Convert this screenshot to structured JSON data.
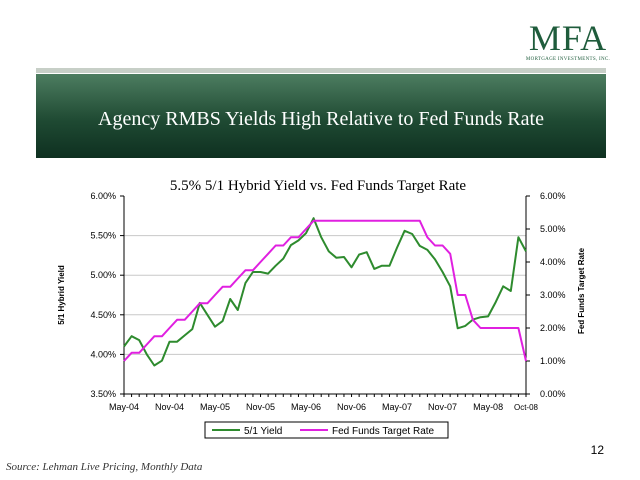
{
  "logo": {
    "mark": "MFA",
    "subtitle": "MORTGAGE INVESTMENTS, INC."
  },
  "slide": {
    "title": "Agency RMBS Yields High Relative to Fed Funds Rate",
    "page_number": "12",
    "source": "Source: Lehman Live Pricing, Monthly Data"
  },
  "colors": {
    "title_band": "#1f4a33",
    "logo": "#1f5c3c",
    "series_1": "#2e8b2e",
    "series_2": "#e020e0"
  },
  "chart_data": {
    "type": "line",
    "title": "5.5% 5/1 Hybrid Yield vs. Fed Funds Target Rate",
    "x": [
      "2004-05",
      "2004-06",
      "2004-07",
      "2004-08",
      "2004-09",
      "2004-10",
      "2004-11",
      "2004-12",
      "2005-01",
      "2005-02",
      "2005-03",
      "2005-04",
      "2005-05",
      "2005-06",
      "2005-07",
      "2005-08",
      "2005-09",
      "2005-10",
      "2005-11",
      "2005-12",
      "2006-01",
      "2006-02",
      "2006-03",
      "2006-04",
      "2006-05",
      "2006-06",
      "2006-07",
      "2006-08",
      "2006-09",
      "2006-10",
      "2006-11",
      "2006-12",
      "2007-01",
      "2007-02",
      "2007-03",
      "2007-04",
      "2007-05",
      "2007-06",
      "2007-07",
      "2007-08",
      "2007-09",
      "2007-10",
      "2007-11",
      "2007-12",
      "2008-01",
      "2008-02",
      "2008-03",
      "2008-04",
      "2008-05",
      "2008-06",
      "2008-07",
      "2008-08",
      "2008-09",
      "2008-10"
    ],
    "xtick_labels": [
      "May-04",
      "Nov-04",
      "May-05",
      "Nov-05",
      "May-06",
      "Nov-06",
      "May-07",
      "Nov-07",
      "May-08",
      "Oct-08"
    ],
    "left_axis": {
      "label": "5/1 Hybrid Yield",
      "ylim": [
        3.5,
        6.0
      ],
      "ticks": [
        "3.50%",
        "4.00%",
        "4.50%",
        "5.00%",
        "5.50%",
        "6.00%"
      ]
    },
    "right_axis": {
      "label": "Fed Funds Target Rate",
      "ylim": [
        0.0,
        6.0
      ],
      "ticks": [
        "0.00%",
        "1.00%",
        "2.00%",
        "3.00%",
        "4.00%",
        "5.00%",
        "6.00%"
      ]
    },
    "series": [
      {
        "name": "5/1 Yield",
        "axis": "left",
        "color": "#2e8b2e",
        "values": [
          4.1,
          4.23,
          4.18,
          4.0,
          3.86,
          3.92,
          4.16,
          4.16,
          4.24,
          4.32,
          4.65,
          4.5,
          4.35,
          4.42,
          4.7,
          4.56,
          4.9,
          5.04,
          5.04,
          5.02,
          5.12,
          5.21,
          5.38,
          5.44,
          5.53,
          5.72,
          5.48,
          5.3,
          5.22,
          5.23,
          5.1,
          5.26,
          5.29,
          5.08,
          5.12,
          5.12,
          5.35,
          5.56,
          5.52,
          5.37,
          5.32,
          5.2,
          5.04,
          4.86,
          4.33,
          4.36,
          4.44,
          4.47,
          4.48,
          4.66,
          4.86,
          4.8,
          5.48,
          5.3
        ]
      },
      {
        "name": "Fed Funds Target Rate",
        "axis": "right",
        "color": "#e020e0",
        "values": [
          1.0,
          1.25,
          1.25,
          1.5,
          1.75,
          1.75,
          2.0,
          2.25,
          2.25,
          2.5,
          2.75,
          2.75,
          3.0,
          3.25,
          3.25,
          3.5,
          3.75,
          3.75,
          4.0,
          4.25,
          4.5,
          4.5,
          4.75,
          4.75,
          5.0,
          5.25,
          5.25,
          5.25,
          5.25,
          5.25,
          5.25,
          5.25,
          5.25,
          5.25,
          5.25,
          5.25,
          5.25,
          5.25,
          5.25,
          5.25,
          4.75,
          4.5,
          4.5,
          4.25,
          3.0,
          3.0,
          2.25,
          2.0,
          2.0,
          2.0,
          2.0,
          2.0,
          2.0,
          1.0
        ]
      }
    ],
    "grid": "horizontal",
    "legend": "bottom"
  }
}
